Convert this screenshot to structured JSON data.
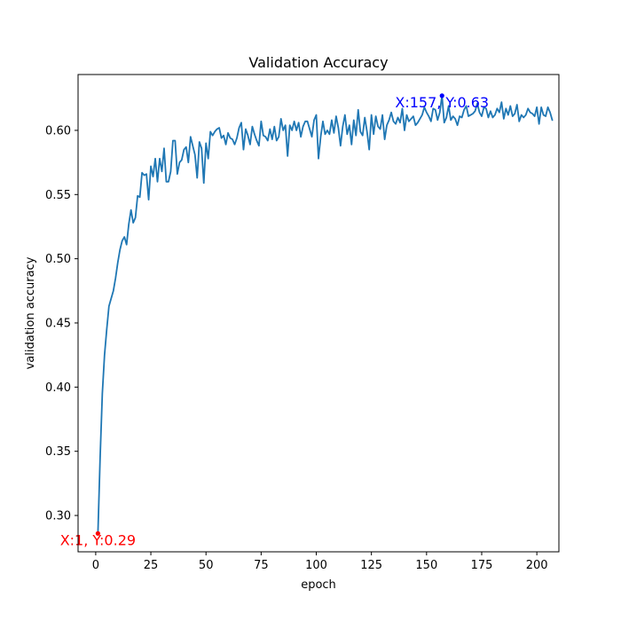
{
  "chart_data": {
    "type": "line",
    "title": "Validation Accuracy",
    "xlabel": "epoch",
    "ylabel": "validation accuracy",
    "xlim": [
      -8,
      210
    ],
    "ylim": [
      0.2717,
      0.6435
    ],
    "xticks": [
      0,
      25,
      50,
      75,
      100,
      125,
      150,
      175,
      200
    ],
    "yticks": [
      0.3,
      0.35,
      0.4,
      0.45,
      0.5,
      0.55,
      0.6
    ],
    "ytick_labels": [
      "0.30",
      "0.35",
      "0.40",
      "0.45",
      "0.50",
      "0.55",
      "0.60"
    ],
    "grid": false,
    "line_color": "#1f77b4",
    "series": [
      {
        "x_start": 1,
        "x_step": 1,
        "values": [
          0.286,
          0.345,
          0.395,
          0.425,
          0.445,
          0.463,
          0.469,
          0.475,
          0.485,
          0.497,
          0.507,
          0.514,
          0.517,
          0.511,
          0.527,
          0.538,
          0.528,
          0.532,
          0.549,
          0.548,
          0.567,
          0.565,
          0.566,
          0.546,
          0.572,
          0.564,
          0.578,
          0.56,
          0.578,
          0.568,
          0.586,
          0.56,
          0.56,
          0.568,
          0.592,
          0.592,
          0.566,
          0.575,
          0.577,
          0.585,
          0.587,
          0.575,
          0.595,
          0.588,
          0.581,
          0.563,
          0.591,
          0.586,
          0.559,
          0.59,
          0.578,
          0.599,
          0.596,
          0.599,
          0.601,
          0.602,
          0.594,
          0.596,
          0.589,
          0.598,
          0.594,
          0.593,
          0.589,
          0.594,
          0.602,
          0.606,
          0.585,
          0.601,
          0.596,
          0.589,
          0.603,
          0.597,
          0.592,
          0.588,
          0.607,
          0.596,
          0.595,
          0.592,
          0.601,
          0.593,
          0.603,
          0.592,
          0.595,
          0.609,
          0.6,
          0.604,
          0.58,
          0.604,
          0.6,
          0.607,
          0.6,
          0.606,
          0.595,
          0.603,
          0.607,
          0.607,
          0.601,
          0.595,
          0.608,
          0.612,
          0.578,
          0.595,
          0.607,
          0.597,
          0.6,
          0.597,
          0.608,
          0.598,
          0.611,
          0.602,
          0.588,
          0.603,
          0.612,
          0.597,
          0.604,
          0.589,
          0.608,
          0.596,
          0.616,
          0.599,
          0.596,
          0.61,
          0.599,
          0.585,
          0.612,
          0.597,
          0.611,
          0.603,
          0.601,
          0.612,
          0.593,
          0.604,
          0.608,
          0.614,
          0.607,
          0.605,
          0.61,
          0.606,
          0.617,
          0.6,
          0.612,
          0.607,
          0.609,
          0.611,
          0.604,
          0.606,
          0.609,
          0.612,
          0.618,
          0.614,
          0.611,
          0.607,
          0.617,
          0.616,
          0.608,
          0.614,
          0.627,
          0.606,
          0.61,
          0.619,
          0.608,
          0.611,
          0.609,
          0.604,
          0.611,
          0.61,
          0.616,
          0.619,
          0.611,
          0.612,
          0.613,
          0.615,
          0.621,
          0.614,
          0.611,
          0.618,
          0.617,
          0.61,
          0.615,
          0.61,
          0.612,
          0.617,
          0.614,
          0.622,
          0.609,
          0.617,
          0.612,
          0.619,
          0.611,
          0.613,
          0.62,
          0.607,
          0.612,
          0.61,
          0.612,
          0.617,
          0.614,
          0.613,
          0.611,
          0.618,
          0.605,
          0.618,
          0.612,
          0.611,
          0.618,
          0.614,
          0.608
        ]
      }
    ],
    "annotations": [
      {
        "text": "X:1, Y:0.29",
        "x": 1,
        "y": 0.286,
        "color": "#ff0000"
      },
      {
        "text": "X:157, Y:0.63",
        "x": 157,
        "y": 0.627,
        "color": "#0000ff"
      }
    ]
  }
}
